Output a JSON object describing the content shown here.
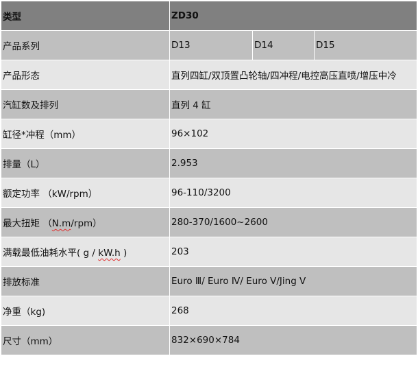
{
  "header": {
    "label": "类型",
    "value": "ZD30"
  },
  "series": {
    "label": "产品系列",
    "values": [
      "D13",
      "D14",
      "D15"
    ]
  },
  "rows": [
    {
      "label": "产品形态",
      "value": "直列四缸/双顶置凸轮轴/四冲程/电控高压直喷/增压中冷"
    },
    {
      "label": "汽缸数及排列",
      "value": "直列 4 缸"
    },
    {
      "label": "缸径*冲程（mm）",
      "value": "96×102"
    },
    {
      "label": "排量（L）",
      "value": "2.953"
    },
    {
      "label": "额定功率 （kW/rpm）",
      "value": "96-110/3200"
    },
    {
      "label_pre": "最大扭矩 （",
      "label_sq": "N.m",
      "label_post": "/rpm）",
      "value": "280-370/1600~2600"
    },
    {
      "label_pre": "满载最低油耗水平( g / ",
      "label_sq": "kW.h",
      "label_post": " )",
      "value": "203"
    },
    {
      "label": "排放标准",
      "value": "Euro Ⅲ/ Euro Ⅳ/ Euro Ⅴ/Jing Ⅴ"
    },
    {
      "label": "净重（kg)",
      "value": "268"
    },
    {
      "label": "尺寸（mm）",
      "value": "832×690×784"
    }
  ]
}
